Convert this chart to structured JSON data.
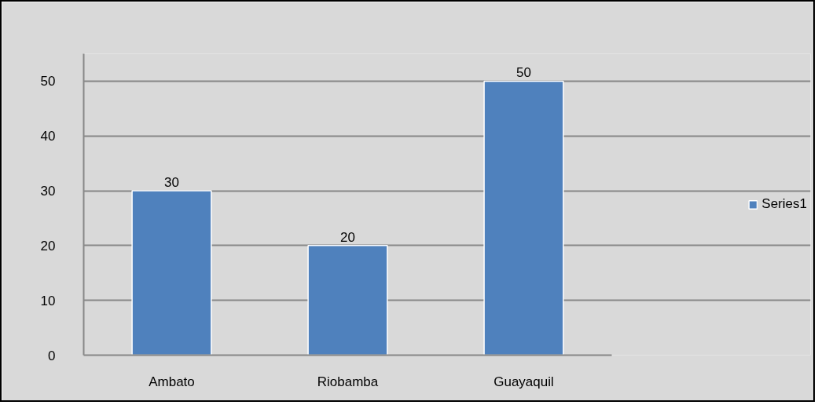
{
  "chart_data": {
    "type": "bar",
    "categories": [
      "Ambato",
      "Riobamba",
      "Guayaquil"
    ],
    "series": [
      {
        "name": "Series1",
        "color": "#4f81bd",
        "values": [
          30,
          20,
          50
        ]
      }
    ],
    "ylim": [
      0,
      55
    ],
    "yticks": [
      0,
      10,
      20,
      30,
      40,
      50
    ],
    "grid": "y",
    "legend": "right",
    "data_labels": true
  }
}
